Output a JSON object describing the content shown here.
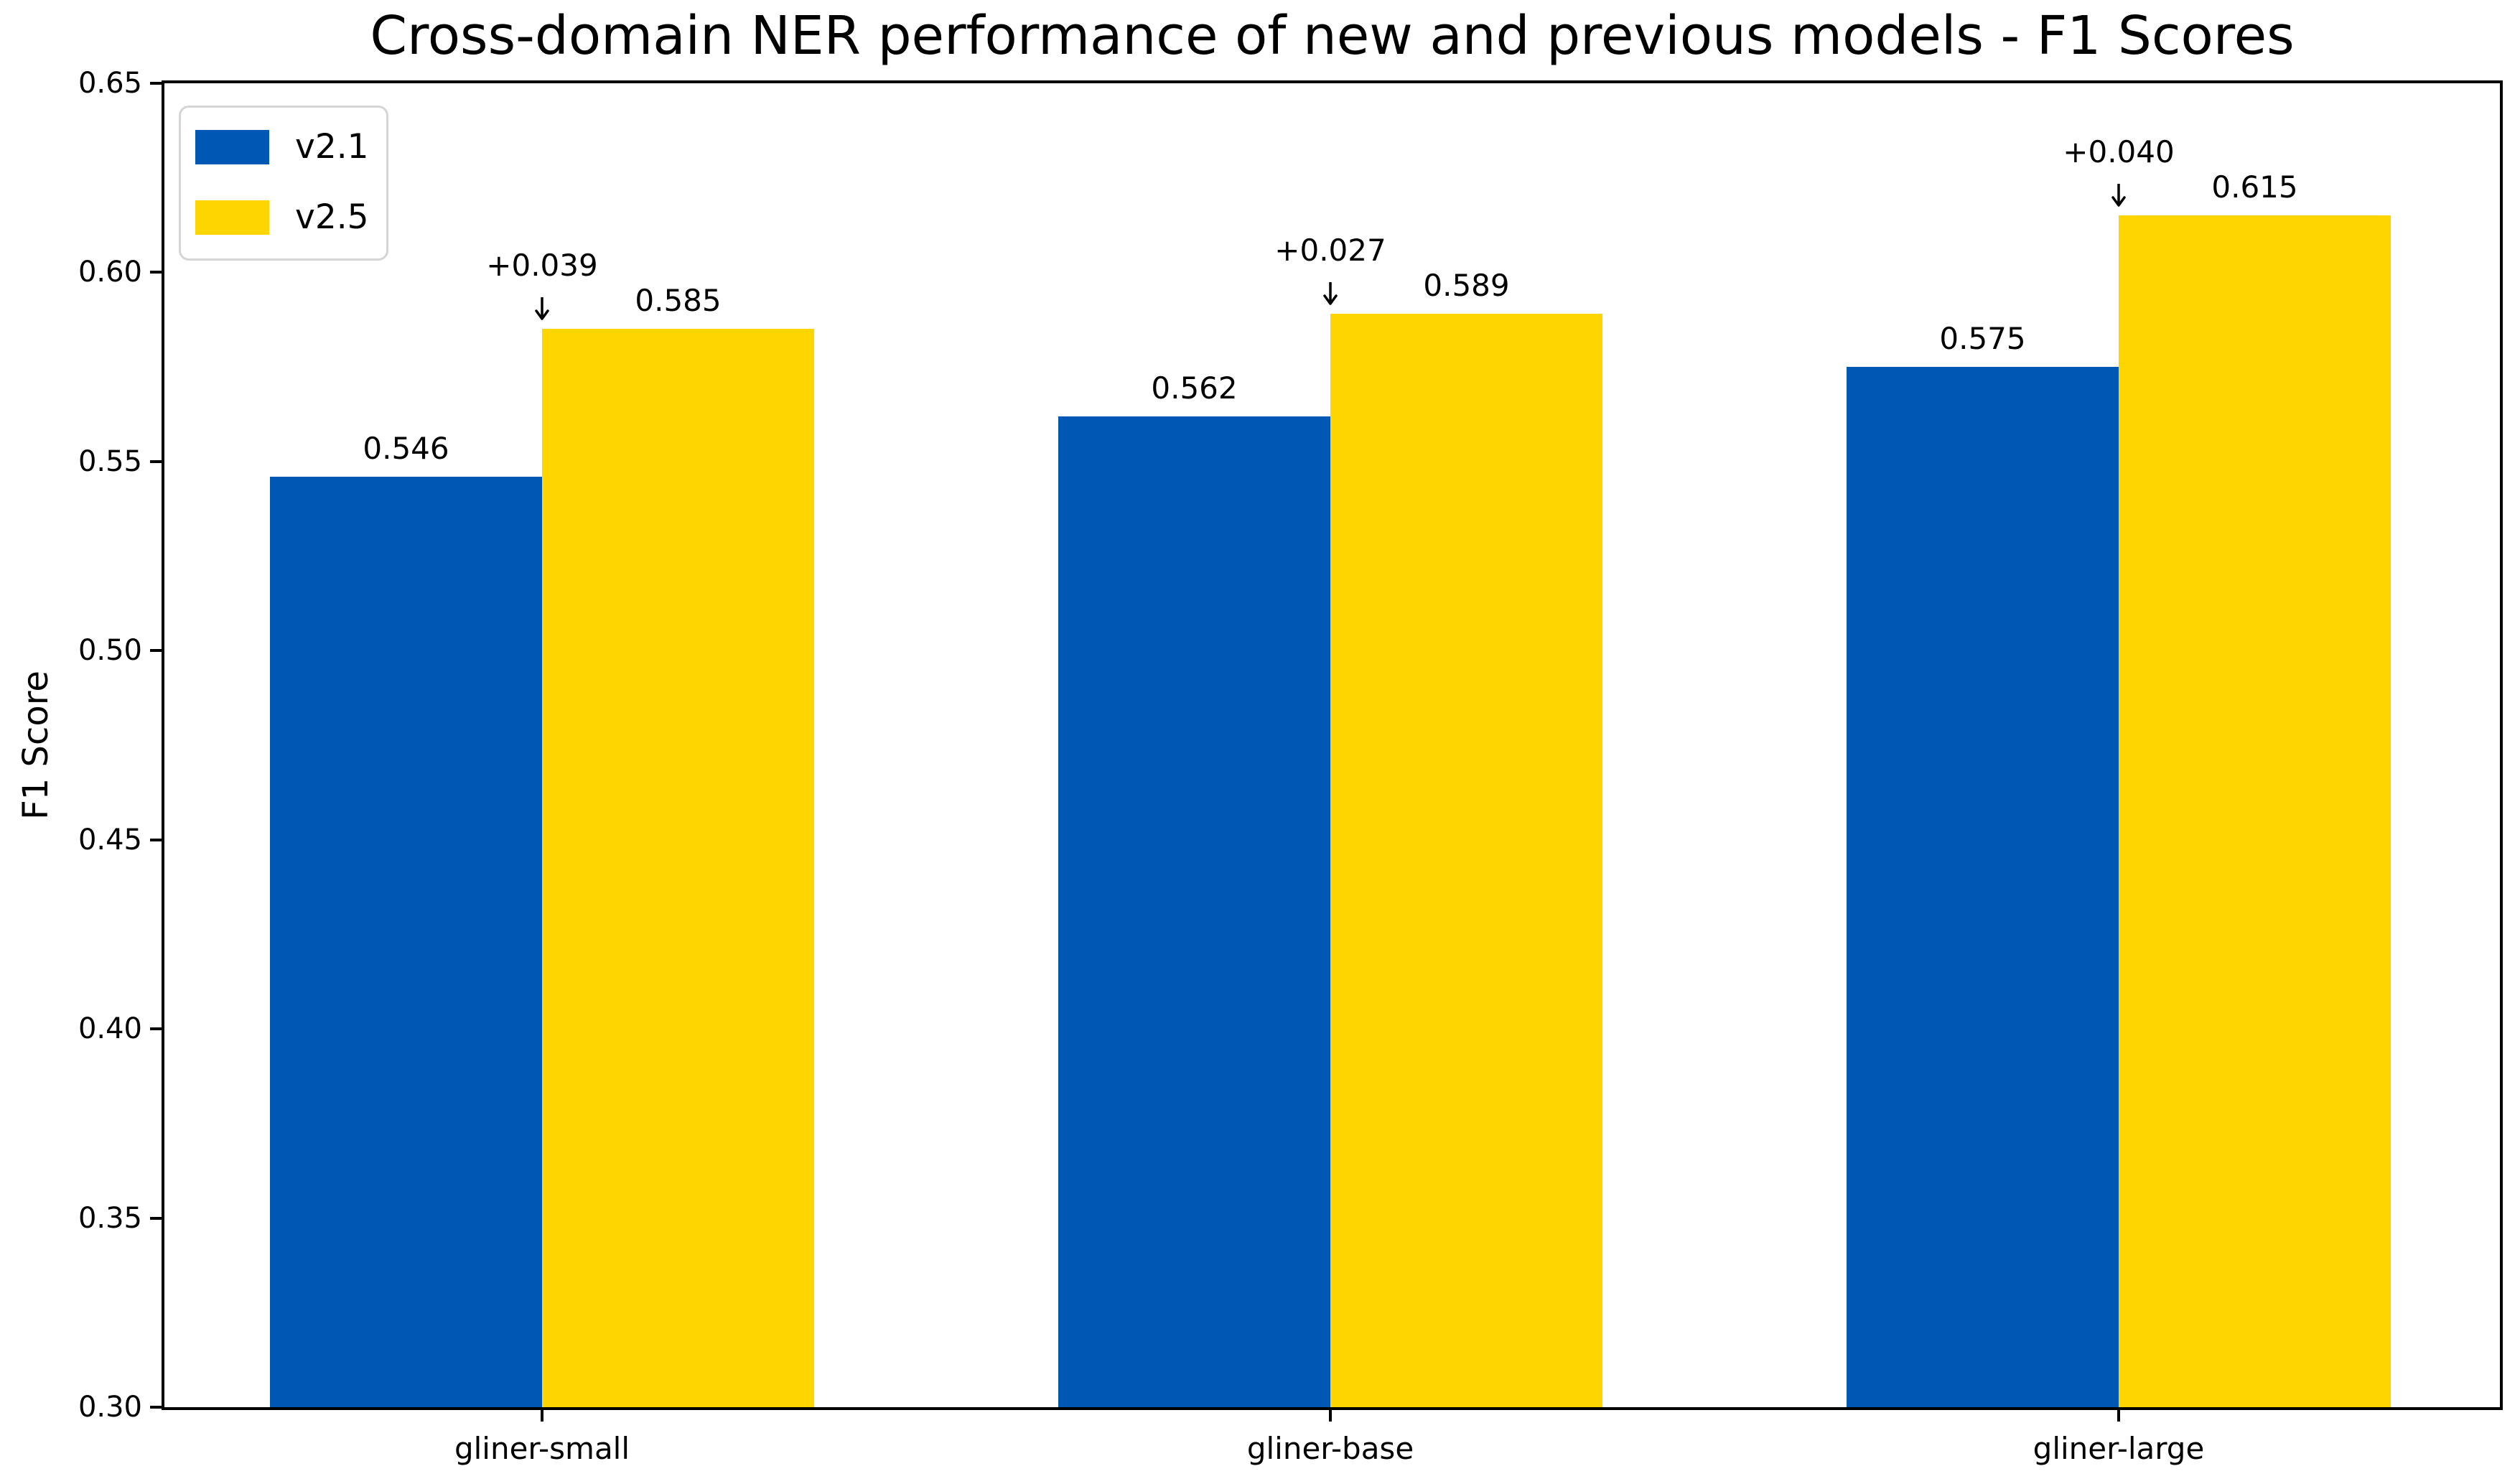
{
  "chart_data": {
    "type": "bar",
    "title": "Cross-domain NER performance of new and previous models - F1 Scores",
    "xlabel": "",
    "ylabel": "F1 Score",
    "categories": [
      "gliner-small",
      "gliner-base",
      "gliner-large"
    ],
    "series": [
      {
        "name": "v2.1",
        "color": "#0057B4",
        "values": [
          0.546,
          0.562,
          0.575
        ],
        "labels": [
          "0.546",
          "0.562",
          "0.575"
        ]
      },
      {
        "name": "v2.5",
        "color": "#FFD500",
        "values": [
          0.585,
          0.589,
          0.615
        ],
        "labels": [
          "0.585",
          "0.589",
          "0.615"
        ]
      }
    ],
    "deltas": [
      "+0.039",
      "+0.027",
      "+0.040"
    ],
    "ylim": [
      0.3,
      0.65
    ],
    "yticks": [
      "0.30",
      "0.35",
      "0.40",
      "0.45",
      "0.50",
      "0.55",
      "0.60",
      "0.65"
    ],
    "legend_position": "upper left",
    "grid": false,
    "axis_color": "#000000",
    "background_color": "#ffffff"
  }
}
